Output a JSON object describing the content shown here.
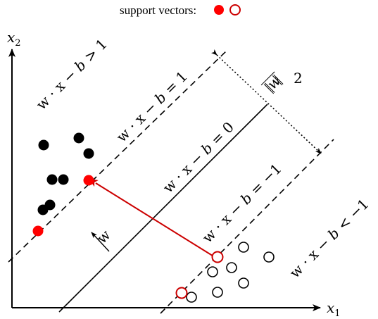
{
  "legend": {
    "label": "support vectors:",
    "filled_color": "#ff0000",
    "hollow_color": "#cc0000"
  },
  "axes": {
    "x_var": "x",
    "x_sub": "1",
    "y_var": "x",
    "y_sub": "2"
  },
  "hyperplanes": {
    "margin_upper": {
      "lhs": "w · x − ",
      "b": "b",
      "rhs": " = 1"
    },
    "decision": {
      "lhs": "w · x − ",
      "b": "b",
      "rhs": " = 0"
    },
    "margin_lower": {
      "lhs": "w · x − ",
      "b": "b",
      "rhs": " = −1"
    }
  },
  "regions": {
    "upper": {
      "lhs": "w · x − ",
      "b": "b",
      "rhs": " > 1"
    },
    "lower": {
      "lhs": "w · x − ",
      "b": "b",
      "rhs": " < −1"
    }
  },
  "margin_width": {
    "numerator": "2",
    "w_label": "w"
  },
  "normal_vector_label": "w",
  "colors": {
    "support_vector": "#ff0000",
    "support_vector_stroke": "#cc0000",
    "normal_arrow": "#cc0000",
    "point_fill": "#000000"
  }
}
